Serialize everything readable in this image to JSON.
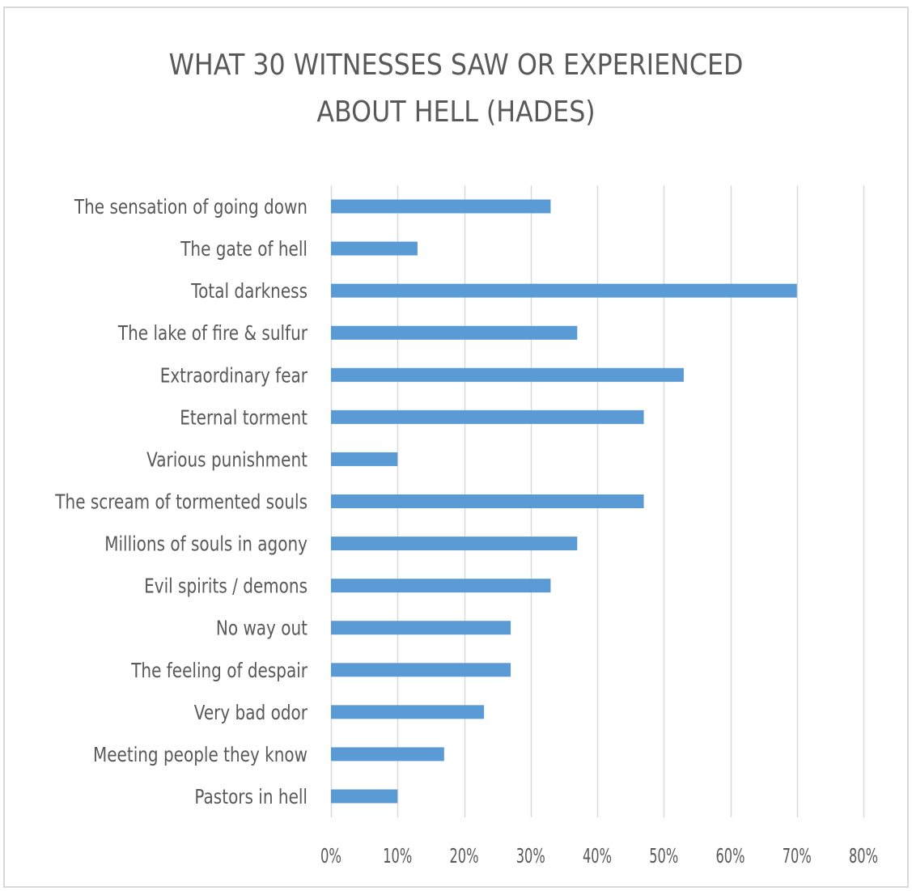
{
  "chart_data": {
    "type": "bar",
    "orientation": "horizontal",
    "title_lines": [
      "WHAT 30 WITNESSES SAW OR EXPERIENCED",
      "ABOUT HELL (HADES)"
    ],
    "categories": [
      "The sensation of going down",
      "The gate of hell",
      "Total darkness",
      "The lake of fire & sulfur",
      "Extraordinary fear",
      "Eternal torment",
      "Various punishment",
      "The scream of tormented souls",
      "Millions of souls in agony",
      "Evil spirits / demons",
      "No way out",
      "The feeling of despair",
      "Very bad odor",
      "Meeting people they know",
      "Pastors in hell"
    ],
    "values": [
      0.33,
      0.13,
      0.7,
      0.37,
      0.53,
      0.47,
      0.1,
      0.47,
      0.37,
      0.33,
      0.27,
      0.27,
      0.23,
      0.17,
      0.1
    ],
    "xlim": [
      0,
      0.8
    ],
    "xticks": [
      0,
      0.1,
      0.2,
      0.3,
      0.4,
      0.5,
      0.6,
      0.7,
      0.8
    ],
    "xtick_labels": [
      "0%",
      "10%",
      "20%",
      "30%",
      "40%",
      "50%",
      "60%",
      "70%",
      "80%"
    ],
    "grid": "vertical",
    "legend": "none",
    "bar_color": "#5b9bd5",
    "grid_color": "#d9d9d9",
    "text_color": "#595959"
  }
}
